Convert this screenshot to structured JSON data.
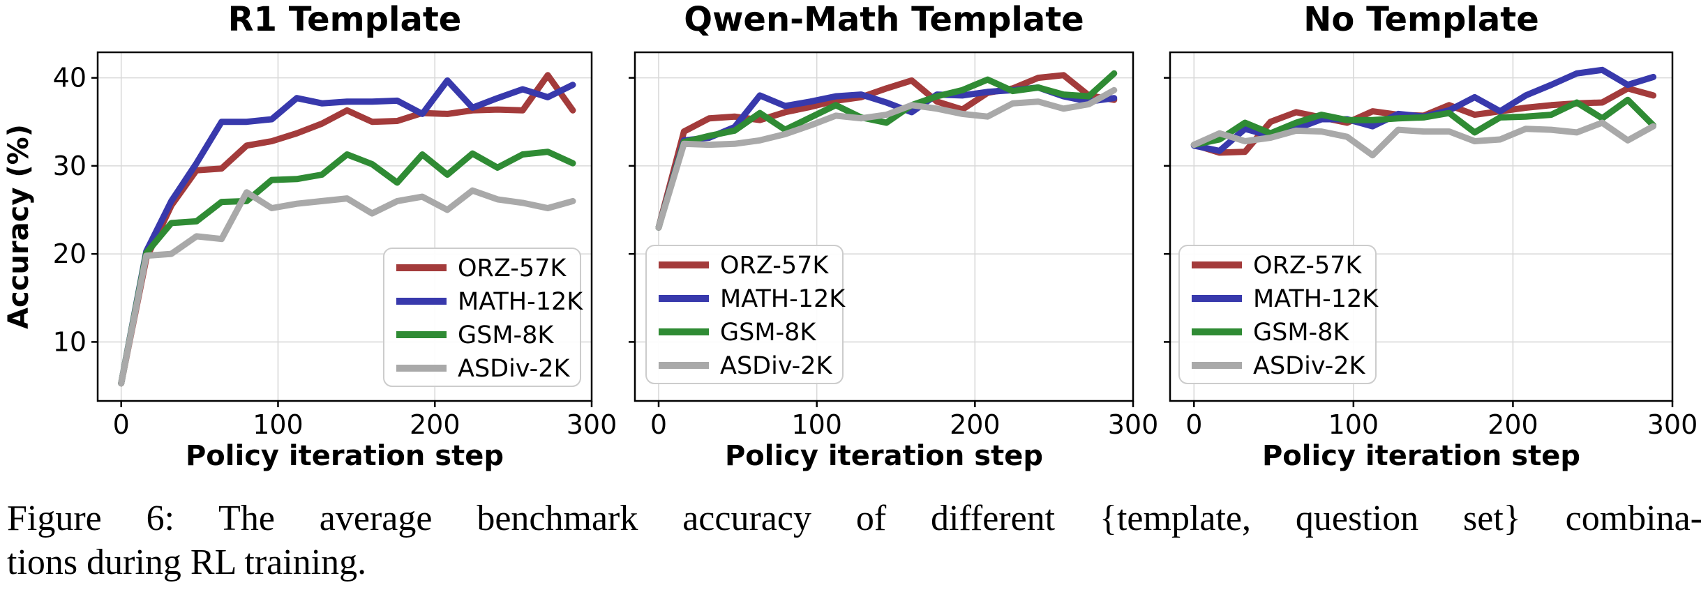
{
  "figure": {
    "caption_line1": "Figure 6: The average benchmark accuracy of different {template, question set} combina-",
    "caption_line2": "tions during RL training.",
    "xlabel": "Policy iteration step",
    "ylabel": "Accuracy (%)",
    "colors": {
      "ORZ-57K": "#A33B3B",
      "MATH-12K": "#3839AC",
      "GSM-8K": "#2F8B34",
      "ASDiv-2K": "#A9A9A9"
    },
    "legend_labels": [
      "ORZ-57K",
      "MATH-12K",
      "GSM-8K",
      "ASDiv-2K"
    ]
  },
  "chart_data": [
    {
      "type": "line",
      "title": "R1 Template",
      "xlabel": "Policy iteration step",
      "ylabel": "Accuracy (%)",
      "x": [
        0,
        16,
        32,
        48,
        64,
        80,
        96,
        112,
        128,
        144,
        160,
        176,
        192,
        208,
        224,
        240,
        256,
        272,
        288
      ],
      "xticks": [
        0,
        100,
        200,
        300
      ],
      "yticks": [
        10,
        20,
        30,
        40
      ],
      "xlim": [
        -15,
        300
      ],
      "ylim": [
        3.3,
        42.9
      ],
      "grid": true,
      "show_ytick_labels": true,
      "legend_position": "lower-right",
      "series": [
        {
          "name": "ORZ-57K",
          "color": "#A33B3B",
          "values": [
            5.3,
            19.5,
            25.5,
            29.5,
            29.7,
            32.3,
            32.8,
            33.7,
            34.8,
            36.3,
            35.0,
            35.1,
            36.0,
            35.9,
            36.3,
            36.4,
            36.3,
            40.3,
            36.3
          ]
        },
        {
          "name": "MATH-12K",
          "color": "#3839AC",
          "values": [
            5.3,
            20.3,
            26.0,
            30.3,
            35.0,
            35.0,
            35.3,
            37.7,
            37.1,
            37.3,
            37.3,
            37.4,
            35.9,
            39.7,
            36.6,
            37.7,
            38.7,
            37.8,
            39.2
          ]
        },
        {
          "name": "GSM-8K",
          "color": "#2F8B34",
          "values": [
            5.3,
            20.1,
            23.5,
            23.7,
            25.9,
            26.0,
            28.4,
            28.5,
            29.0,
            31.3,
            30.2,
            28.1,
            31.3,
            29.0,
            31.4,
            29.8,
            31.3,
            31.6,
            30.3
          ]
        },
        {
          "name": "ASDiv-2K",
          "color": "#A9A9A9",
          "values": [
            5.3,
            19.8,
            20.0,
            22.0,
            21.7,
            27.0,
            25.2,
            25.7,
            26.0,
            26.3,
            24.6,
            26.0,
            26.5,
            25.0,
            27.2,
            26.2,
            25.8,
            25.2,
            26.0
          ]
        }
      ]
    },
    {
      "type": "line",
      "title": "Qwen-Math Template",
      "xlabel": "Policy iteration step",
      "ylabel": "",
      "x": [
        0,
        16,
        32,
        48,
        64,
        80,
        96,
        112,
        128,
        144,
        160,
        176,
        192,
        208,
        224,
        240,
        256,
        272,
        288
      ],
      "xticks": [
        0,
        100,
        200,
        300
      ],
      "yticks": [
        10,
        20,
        30,
        40
      ],
      "xlim": [
        -15,
        300
      ],
      "ylim": [
        3.3,
        42.9
      ],
      "grid": true,
      "show_ytick_labels": false,
      "legend_position": "lower-left",
      "series": [
        {
          "name": "ORZ-57K",
          "color": "#A33B3B",
          "values": [
            23.0,
            33.9,
            35.4,
            35.6,
            35.2,
            36.1,
            36.7,
            37.4,
            37.8,
            38.8,
            39.7,
            37.3,
            36.4,
            38.3,
            38.8,
            40.0,
            40.3,
            38.0,
            37.5
          ]
        },
        {
          "name": "MATH-12K",
          "color": "#3839AC",
          "values": [
            23.0,
            32.9,
            33.2,
            34.4,
            38.0,
            36.8,
            37.3,
            37.9,
            38.1,
            37.2,
            36.1,
            38.1,
            38.0,
            38.4,
            38.6,
            38.9,
            37.9,
            37.3,
            37.7
          ]
        },
        {
          "name": "GSM-8K",
          "color": "#2F8B34",
          "values": [
            23.0,
            32.7,
            33.4,
            34.0,
            36.0,
            34.1,
            35.5,
            36.9,
            35.5,
            34.9,
            36.9,
            37.9,
            38.6,
            39.8,
            38.5,
            38.9,
            38.1,
            37.9,
            40.5
          ]
        },
        {
          "name": "ASDiv-2K",
          "color": "#A9A9A9",
          "values": [
            23.0,
            32.5,
            32.4,
            32.5,
            32.9,
            33.6,
            34.6,
            35.7,
            35.4,
            35.8,
            36.9,
            36.5,
            35.9,
            35.6,
            37.1,
            37.3,
            36.5,
            37.0,
            38.6
          ]
        }
      ]
    },
    {
      "type": "line",
      "title": "No Template",
      "xlabel": "Policy iteration step",
      "ylabel": "",
      "x": [
        0,
        16,
        32,
        48,
        64,
        80,
        96,
        112,
        128,
        144,
        160,
        176,
        192,
        208,
        224,
        240,
        256,
        272,
        288
      ],
      "xticks": [
        0,
        100,
        200,
        300
      ],
      "yticks": [
        10,
        20,
        30,
        40
      ],
      "xlim": [
        -15,
        300
      ],
      "ylim": [
        3.3,
        42.9
      ],
      "grid": true,
      "show_ytick_labels": false,
      "legend_position": "lower-left",
      "series": [
        {
          "name": "ORZ-57K",
          "color": "#A33B3B",
          "values": [
            32.4,
            31.5,
            31.6,
            35.0,
            36.1,
            35.5,
            34.9,
            36.2,
            35.8,
            35.7,
            36.9,
            35.8,
            36.2,
            36.6,
            36.9,
            37.1,
            37.2,
            38.8,
            38.0
          ]
        },
        {
          "name": "MATH-12K",
          "color": "#3839AC",
          "values": [
            32.3,
            31.7,
            34.2,
            33.4,
            34.2,
            35.3,
            35.3,
            34.5,
            35.9,
            35.6,
            36.3,
            37.8,
            36.2,
            38.0,
            39.2,
            40.5,
            40.9,
            39.2,
            40.1
          ]
        },
        {
          "name": "GSM-8K",
          "color": "#2F8B34",
          "values": [
            32.4,
            33.0,
            34.9,
            33.7,
            34.9,
            35.8,
            35.2,
            35.2,
            35.4,
            35.5,
            36.0,
            33.8,
            35.5,
            35.6,
            35.8,
            37.2,
            35.4,
            37.5,
            34.6
          ]
        },
        {
          "name": "ASDiv-2K",
          "color": "#A9A9A9",
          "values": [
            32.4,
            33.7,
            32.8,
            33.2,
            34.0,
            33.9,
            33.3,
            31.2,
            34.1,
            33.9,
            33.9,
            32.8,
            33.0,
            34.2,
            34.1,
            33.8,
            34.9,
            32.9,
            34.5
          ]
        }
      ]
    }
  ]
}
